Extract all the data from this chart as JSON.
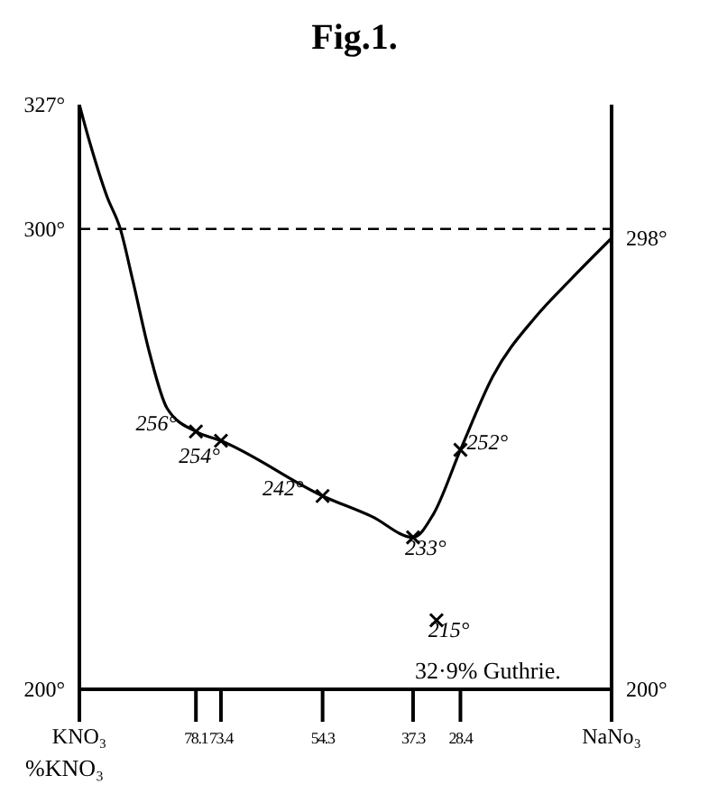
{
  "chart_data": {
    "type": "line",
    "title": "Fig.1.",
    "xlabel": "%KNO₃",
    "xlim": [
      100,
      0
    ],
    "xticks": [
      {
        "value": 100,
        "label": "KNO₃"
      },
      78.1,
      73.4,
      54.3,
      37.3,
      28.4,
      {
        "value": 0,
        "label": "NaNo₃"
      }
    ],
    "ylim": [
      200,
      327
    ],
    "yticks": [
      {
        "value": 200,
        "label": "200°"
      },
      {
        "value": 300,
        "label": "300°"
      },
      {
        "value": 327,
        "label": "327°"
      }
    ],
    "y2lim": [
      200,
      327
    ],
    "y2ticks": [
      {
        "value": 200,
        "label": "200°"
      },
      {
        "value": 298,
        "label": "298°"
      }
    ],
    "ref_lines": [
      {
        "axis": "y",
        "value": 300,
        "line_style": "dashed",
        "color": "#000000"
      }
    ],
    "annotations": [
      "32·9% Guthrie."
    ],
    "series": [
      {
        "color": "#000000",
        "marker": "none",
        "line_style": "solid",
        "x": [
          100,
          98.1,
          94.8,
          92.3,
          90,
          86.8,
          83.5,
          78.1,
          73.4,
          54.3,
          45,
          37.3,
          33.5,
          28.4,
          22.3,
          14.2,
          7.7,
          0
        ],
        "values": [
          327,
          319,
          307,
          300,
          289,
          273,
          261,
          256,
          254,
          242,
          237.5,
          233,
          238,
          252,
          268,
          281,
          289,
          298
        ]
      },
      {
        "type": "scatter",
        "color": "#000000",
        "marker": "cross",
        "x": [
          78.1,
          73.4,
          54.3,
          37.3,
          28.4
        ],
        "values": [
          256,
          254,
          242,
          233,
          252
        ],
        "value_labels": [
          "256°",
          "254°",
          "242°",
          "233°",
          "252°"
        ]
      },
      {
        "type": "scatter",
        "color": "#000000",
        "marker": "cross",
        "x": [
          32.9
        ],
        "values": [
          215
        ],
        "value_labels": [
          "215°"
        ]
      }
    ]
  }
}
